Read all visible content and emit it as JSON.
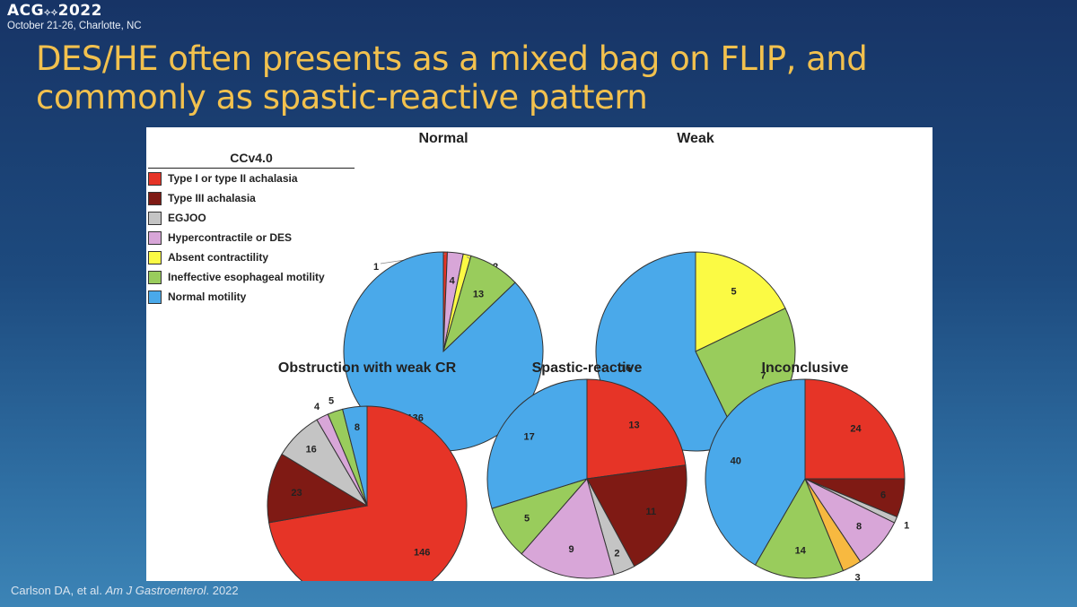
{
  "header": {
    "logo_text": "ACG",
    "logo_year": "2022",
    "location": "October 21-26, Charlotte, NC"
  },
  "slide": {
    "title_line1": "DES/HE often presents as a mixed bag on FLIP, and",
    "title_line2": "commonly as spastic-reactive pattern"
  },
  "legend": {
    "title": "CCv4.0",
    "items": [
      {
        "label": "Type I or type II achalasia",
        "color": "#e63427"
      },
      {
        "label": "Type III achalasia",
        "color": "#7f1a14"
      },
      {
        "label": "EGJOO",
        "color": "#c4c4c4"
      },
      {
        "label": "Hypercontractile or DES",
        "color": "#d8a6d8"
      },
      {
        "label": "Absent contractility",
        "color": "#fbfa44"
      },
      {
        "label": "Ineffective esophageal motility",
        "color": "#99cc5c"
      },
      {
        "label": "Normal motility",
        "color": "#4aa9ea"
      }
    ]
  },
  "chart_data": [
    {
      "type": "pie",
      "title": "Normal",
      "categories": [
        "Type I or type II achalasia",
        "Hypercontractile or DES",
        "Absent contractility",
        "Ineffective esophageal motility",
        "Normal motility"
      ],
      "values": [
        1,
        4,
        2,
        13,
        136
      ]
    },
    {
      "type": "pie",
      "title": "Weak",
      "categories": [
        "Absent contractility",
        "Ineffective esophageal motility",
        "Normal motility"
      ],
      "values": [
        5,
        7,
        16
      ]
    },
    {
      "type": "pie",
      "title": "Obstruction with weak CR",
      "categories": [
        "Type I or type II achalasia",
        "Type III achalasia",
        "EGJOO",
        "Hypercontractile or DES",
        "Ineffective esophageal motility",
        "Normal motility"
      ],
      "values": [
        146,
        23,
        16,
        4,
        5,
        8
      ]
    },
    {
      "type": "pie",
      "title": "Spastic-reactive",
      "categories": [
        "Type I or type II achalasia",
        "Type III achalasia",
        "EGJOO",
        "Hypercontractile or DES",
        "Ineffective esophageal motility",
        "Normal motility"
      ],
      "values": [
        13,
        11,
        2,
        9,
        5,
        17
      ]
    },
    {
      "type": "pie",
      "title": "Inconclusive",
      "categories": [
        "Type I or type II achalasia",
        "Type III achalasia",
        "EGJOO",
        "Hypercontractile or DES",
        "Absent contractility",
        "Ineffective esophageal motility",
        "Normal motility"
      ],
      "values": [
        24,
        6,
        1,
        8,
        3,
        14,
        40
      ],
      "colors_override": {
        "Absent contractility": "#f7b940"
      }
    }
  ],
  "citation": {
    "authors": "Carlson DA, et al.",
    "journal": "Am J Gastroenterol",
    "year": ". 2022"
  }
}
